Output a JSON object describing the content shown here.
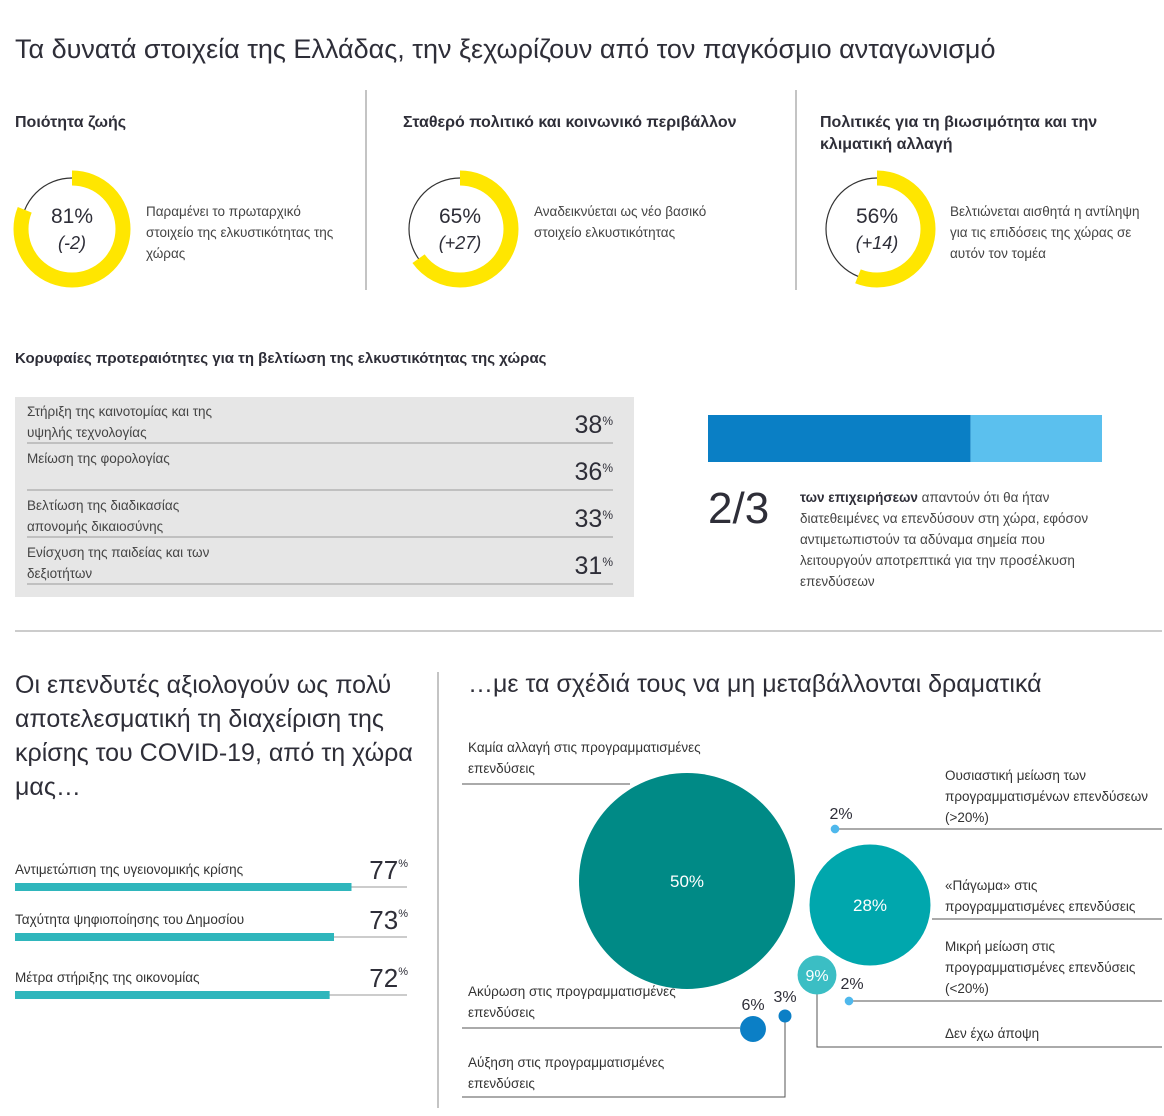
{
  "title": "Τα δυνατά στοιχεία της Ελλάδας, την ξεχωρίζουν από τον παγκόσμιο ανταγωνισμό",
  "strengths": [
    {
      "heading": "Ποιότητα ζωής",
      "value": 81,
      "value_label": "81%",
      "change": -2,
      "change_label": "(-2)",
      "text": "Παραμένει το πρωταρχικό στοιχείο της ελκυστικότητας της χώρας"
    },
    {
      "heading": "Σταθερό πολιτικό και κοινωνικό περιβάλλον",
      "value": 65,
      "value_label": "65%",
      "change": 27,
      "change_label": "(+27)",
      "text": "Αναδεικνύεται ως νέο βασικό στοιχείο ελκυστικότητας"
    },
    {
      "heading": "Πολιτικές για τη βιωσιμότητα και την κλιματική αλλαγή",
      "value": 56,
      "value_label": "56%",
      "change": 14,
      "change_label": "(+14)",
      "text": "Βελτιώνεται αισθητά η αντίληψη για τις επιδόσεις της χώρας σε αυτόν τον τομέα"
    }
  ],
  "priorities": {
    "heading": "Κορυφαίες προτεραιότητες για τη βελτίωση της ελκυστικότητας της χώρας",
    "unit": "%",
    "items": [
      {
        "label": "Στήριξη της καινοτομίας και της υψηλής τεχνολογίας",
        "value": 38
      },
      {
        "label": "Μείωση της φορολογίας",
        "value": 36
      },
      {
        "label": "Βελτίωση της διαδικασίας απονομής δικαιοσύνης",
        "value": 33
      },
      {
        "label": "Ενίσχυση της παιδείας και των δεξιοτήτων",
        "value": 31
      }
    ]
  },
  "share": {
    "numerator": 2,
    "denominator": 3,
    "label": "2/3",
    "bold_text": "των επιχειρήσεων",
    "text": "απαντούν ότι θα ήταν διατεθειμένες να επενδύσουν στη χώρα, εφόσον αντιμετωπιστούν τα αδύναμα σημεία που λειτουργούν αποτρεπτικά για την προσέλκυση επενδύσεων",
    "colors": [
      "#0a7fc5",
      "#5bc0ee"
    ]
  },
  "covid": {
    "heading": "Οι επενδυτές αξιολογούν ως πολύ αποτελεσματική τη διαχείριση της κρίσης του COVID-19, από τη χώρα μας…",
    "unit": "%",
    "color": "#2fb6bc",
    "items": [
      {
        "label": "Αντιμετώπιση της υγειονομικής κρίσης",
        "value": 77
      },
      {
        "label": "Ταχύτητα ψηφιοποίησης του Δημοσίου",
        "value": 73
      },
      {
        "label": "Μέτρα στήριξης της οικονομίας",
        "value": 72
      }
    ]
  },
  "plans": {
    "heading": "…με τα σχέδιά τους να μη μεταβάλλονται δραματικά",
    "items": [
      {
        "label": "Καμία αλλαγή στις προγραμματισμένες επενδύσεις",
        "value": 50,
        "value_label": "50%",
        "color": "#008a86"
      },
      {
        "label": "Ουσιαστική μείωση των προγραμματισμένων επενδύσεων (>20%)",
        "value": 2,
        "value_label": "2%",
        "color": "#4fb8ec"
      },
      {
        "label": "«Πάγωμα» στις προγραμματισμένες επενδύσεις",
        "value": 28,
        "value_label": "28%",
        "color": "#00a7ad"
      },
      {
        "label": "Μικρή μείωση στις προγραμματισμένες επενδύσεις (<20%)",
        "value": 2,
        "value_label": "2%",
        "color": "#4fb8ec"
      },
      {
        "label": "Δεν έχω άποψη",
        "value": 9,
        "value_label": "9%",
        "color": "#3bbec4"
      },
      {
        "label": "Ακύρωση στις προγραμματισμένες επενδύσεις",
        "value": 6,
        "value_label": "6%",
        "color": "#0b7fc6"
      },
      {
        "label": "Αύξηση στις προγραμματισμένες επενδύσεις",
        "value": 3,
        "value_label": "3%",
        "color": "#0b7fc6"
      }
    ]
  }
}
